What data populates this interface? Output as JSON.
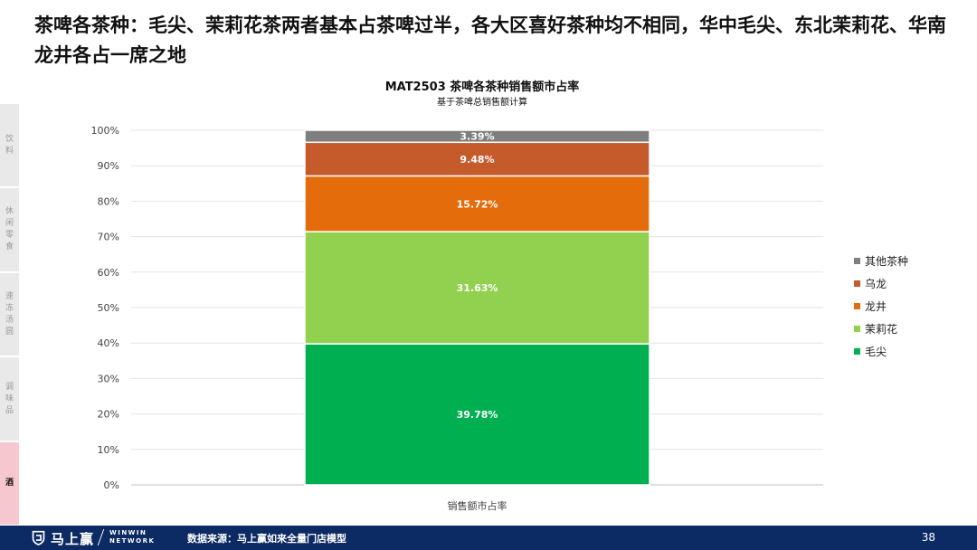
{
  "headline": "茶啤各茶种：毛尖、茉莉花茶两者基本占茶啤过半，各大区喜好茶种均不相同，华中毛尖、东北茉莉花、华南龙井各占一席之地",
  "side_nav": [
    "饮料",
    "休闲零食",
    "速冻汤圆",
    "调味品",
    "酒"
  ],
  "chart_data": {
    "type": "bar",
    "stacked": true,
    "title": "MAT2503 茶啤各茶种销售额市占率",
    "subtitle": "基于茶啤总销售额计算",
    "categories": [
      "销售额市占率"
    ],
    "y_ticks": [
      "0%",
      "10%",
      "20%",
      "30%",
      "40%",
      "50%",
      "60%",
      "70%",
      "80%",
      "90%",
      "100%"
    ],
    "ylim": [
      0,
      100
    ],
    "series": [
      {
        "name": "毛尖",
        "values": [
          39.78
        ],
        "label": "39.78%",
        "color": "#00b050"
      },
      {
        "name": "茉莉花",
        "values": [
          31.63
        ],
        "label": "31.63%",
        "color": "#92d050"
      },
      {
        "name": "龙井",
        "values": [
          15.72
        ],
        "label": "15.72%",
        "color": "#e46c0a"
      },
      {
        "name": "乌龙",
        "values": [
          9.48
        ],
        "label": "9.48%",
        "color": "#c55a2b"
      },
      {
        "name": "其他茶种",
        "values": [
          3.39
        ],
        "label": "3.39%",
        "color": "#7f7f7f"
      }
    ],
    "legend_position": "right",
    "grid": true
  },
  "footer": {
    "brand": "马上赢",
    "brand_en_1": "WINWIN",
    "brand_en_2": "NETWORK",
    "source": "数据来源：马上赢如来全量门店模型",
    "page": "38"
  }
}
